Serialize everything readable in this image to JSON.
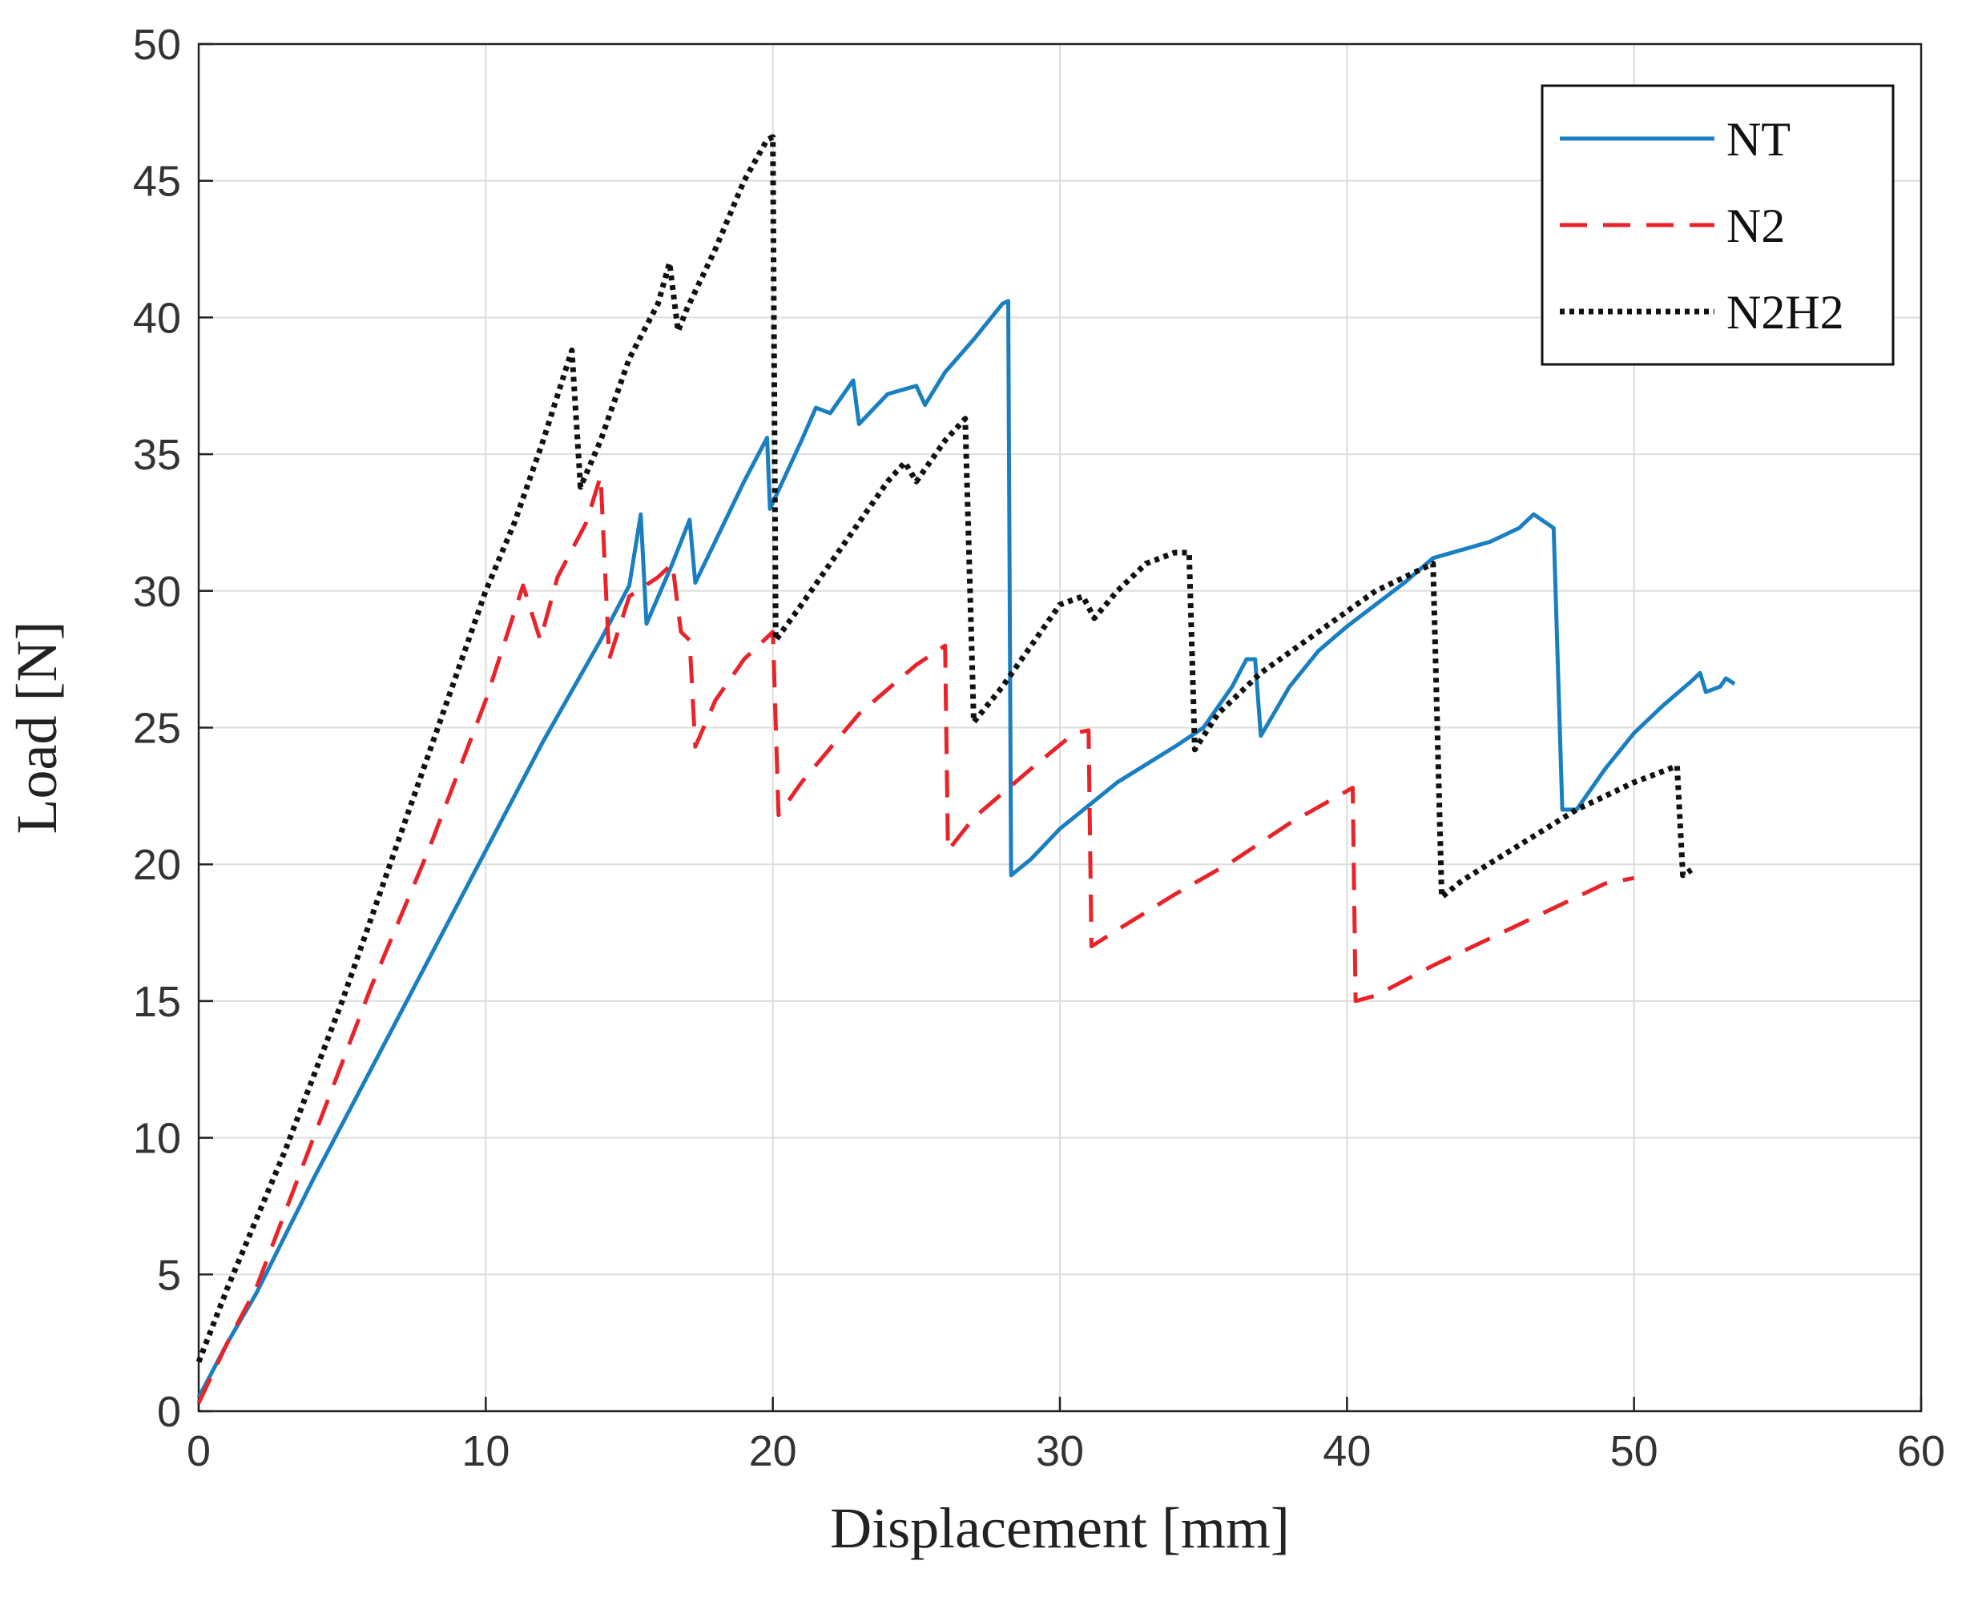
{
  "chart_data": {
    "type": "line",
    "title": "",
    "xlabel": "Displacement [mm]",
    "ylabel": "Load [N]",
    "xlim": [
      0,
      60
    ],
    "ylim": [
      0,
      50
    ],
    "xticks": [
      0,
      10,
      20,
      30,
      40,
      50,
      60
    ],
    "yticks": [
      0,
      5,
      10,
      15,
      20,
      25,
      30,
      35,
      40,
      45,
      50
    ],
    "grid": true,
    "legend_position": "top-right",
    "series": [
      {
        "name": "NT",
        "color": "#1a7fc1",
        "style": "solid",
        "points": [
          [
            0,
            0.5
          ],
          [
            1,
            2.5
          ],
          [
            2,
            4.3
          ],
          [
            4,
            8.5
          ],
          [
            6,
            12.5
          ],
          [
            8,
            16.5
          ],
          [
            10,
            20.5
          ],
          [
            12,
            24.5
          ],
          [
            14,
            28.2
          ],
          [
            15,
            30.2
          ],
          [
            15.4,
            32.8
          ],
          [
            15.6,
            28.8
          ],
          [
            16.5,
            31
          ],
          [
            17.1,
            32.6
          ],
          [
            17.3,
            30.3
          ],
          [
            19,
            34
          ],
          [
            19.8,
            35.6
          ],
          [
            19.9,
            33
          ],
          [
            21,
            35.5
          ],
          [
            21.5,
            36.7
          ],
          [
            22,
            36.5
          ],
          [
            22.8,
            37.7
          ],
          [
            23,
            36.1
          ],
          [
            24,
            37.2
          ],
          [
            25,
            37.5
          ],
          [
            25.3,
            36.8
          ],
          [
            26,
            38
          ],
          [
            27,
            39.2
          ],
          [
            28,
            40.5
          ],
          [
            28.2,
            40.6
          ],
          [
            28.3,
            19.6
          ],
          [
            29,
            20.2
          ],
          [
            30,
            21.3
          ],
          [
            32,
            23
          ],
          [
            34,
            24.3
          ],
          [
            35,
            25
          ],
          [
            36,
            26.5
          ],
          [
            36.5,
            27.5
          ],
          [
            36.8,
            27.5
          ],
          [
            37,
            24.7
          ],
          [
            38,
            26.5
          ],
          [
            39,
            27.8
          ],
          [
            40,
            28.7
          ],
          [
            42,
            30.3
          ],
          [
            43,
            31.2
          ],
          [
            45,
            31.8
          ],
          [
            46,
            32.3
          ],
          [
            46.5,
            32.8
          ],
          [
            47.2,
            32.3
          ],
          [
            47.5,
            22
          ],
          [
            48,
            22
          ],
          [
            49,
            23.5
          ],
          [
            50,
            24.8
          ],
          [
            51,
            25.8
          ],
          [
            52,
            26.7
          ],
          [
            52.3,
            27
          ],
          [
            52.5,
            26.3
          ],
          [
            53,
            26.5
          ],
          [
            53.2,
            26.8
          ],
          [
            53.5,
            26.6
          ]
        ]
      },
      {
        "name": "N2",
        "color": "#e8232a",
        "style": "dashed",
        "points": [
          [
            0,
            0.3
          ],
          [
            1,
            2.5
          ],
          [
            2,
            4.5
          ],
          [
            4,
            10
          ],
          [
            6,
            15.5
          ],
          [
            8,
            20.5
          ],
          [
            10,
            26
          ],
          [
            11.3,
            30.2
          ],
          [
            11.9,
            28.2
          ],
          [
            12.5,
            30.5
          ],
          [
            13.5,
            32.5
          ],
          [
            14,
            34.2
          ],
          [
            14.3,
            27.5
          ],
          [
            15,
            29.8
          ],
          [
            16,
            30.5
          ],
          [
            16.5,
            31
          ],
          [
            16.8,
            28.5
          ],
          [
            17.1,
            28.2
          ],
          [
            17.3,
            24.3
          ],
          [
            18,
            26
          ],
          [
            19,
            27.5
          ],
          [
            20,
            28.5
          ],
          [
            20.2,
            21.8
          ],
          [
            21,
            23
          ],
          [
            23,
            25.5
          ],
          [
            25,
            27.3
          ],
          [
            26,
            28
          ],
          [
            26.1,
            20.5
          ],
          [
            27,
            21.7
          ],
          [
            29,
            23.5
          ],
          [
            30.5,
            24.8
          ],
          [
            31,
            24.9
          ],
          [
            31.1,
            17
          ],
          [
            32,
            17.6
          ],
          [
            34,
            18.9
          ],
          [
            36,
            20.1
          ],
          [
            38,
            21.5
          ],
          [
            40.2,
            22.8
          ],
          [
            40.3,
            15
          ],
          [
            41,
            15.2
          ],
          [
            43,
            16.3
          ],
          [
            45,
            17.3
          ],
          [
            47,
            18.3
          ],
          [
            49,
            19.3
          ],
          [
            50,
            19.5
          ]
        ]
      },
      {
        "name": "N2H2",
        "color": "#111111",
        "style": "dotted",
        "points": [
          [
            0,
            1.8
          ],
          [
            1,
            4.5
          ],
          [
            3,
            9.5
          ],
          [
            5,
            15
          ],
          [
            7,
            21
          ],
          [
            9,
            27
          ],
          [
            10,
            30
          ],
          [
            11,
            32.5
          ],
          [
            12,
            35.5
          ],
          [
            13,
            38.8
          ],
          [
            13.3,
            33.8
          ],
          [
            14,
            35.5
          ],
          [
            15,
            38.5
          ],
          [
            16,
            40.5
          ],
          [
            16.4,
            42
          ],
          [
            16.7,
            39.5
          ],
          [
            17,
            40.3
          ],
          [
            18,
            42.5
          ],
          [
            19,
            45
          ],
          [
            19.8,
            46.5
          ],
          [
            20,
            46.6
          ],
          [
            20.1,
            28.2
          ],
          [
            21,
            29.5
          ],
          [
            22,
            31
          ],
          [
            23,
            32.5
          ],
          [
            24,
            34
          ],
          [
            24.6,
            34.7
          ],
          [
            25,
            34
          ],
          [
            26,
            35.5
          ],
          [
            26.7,
            36.3
          ],
          [
            27,
            25.2
          ],
          [
            28,
            26.5
          ],
          [
            29,
            28
          ],
          [
            30,
            29.5
          ],
          [
            30.8,
            29.8
          ],
          [
            31.2,
            29
          ],
          [
            32,
            30
          ],
          [
            33,
            31
          ],
          [
            34,
            31.4
          ],
          [
            34.5,
            31.4
          ],
          [
            34.7,
            24.2
          ],
          [
            35.5,
            25.5
          ],
          [
            37,
            27
          ],
          [
            39,
            28.5
          ],
          [
            41,
            30
          ],
          [
            43,
            31
          ],
          [
            43.3,
            18.8
          ],
          [
            44,
            19.4
          ],
          [
            46,
            20.7
          ],
          [
            48,
            22
          ],
          [
            50,
            23
          ],
          [
            51.5,
            23.6
          ],
          [
            51.7,
            19.6
          ],
          [
            52,
            19.8
          ]
        ]
      }
    ]
  }
}
